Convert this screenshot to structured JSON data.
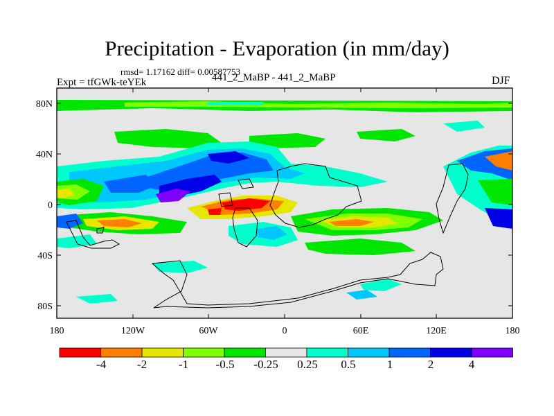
{
  "title": "Precipitation - Evaporation (in mm/day)",
  "stats": "rmsd= 1.17162 diff= 0.00587753",
  "experiment": "Expt = tfGWk-teYEk",
  "runs": "441_2_MaBP - 441_2_MaBP",
  "season": "DJF",
  "lat_ticks": [
    "80N",
    "40N",
    "0",
    "40S",
    "80S"
  ],
  "lon_ticks": [
    "180",
    "120W",
    "60W",
    "0",
    "60E",
    "120E",
    "180"
  ],
  "colorbar": {
    "colors": [
      "#ff0000",
      "#ff7f00",
      "#e6e600",
      "#7fff00",
      "#00e600",
      "#e6e6e6",
      "#00ffcc",
      "#00c8ff",
      "#0064ff",
      "#0000e6",
      "#8000ff"
    ],
    "labels": [
      "-4",
      "-2",
      "-1",
      "-0.5",
      "-0.25",
      "0.25",
      "0.5",
      "1",
      "2",
      "4"
    ]
  }
}
